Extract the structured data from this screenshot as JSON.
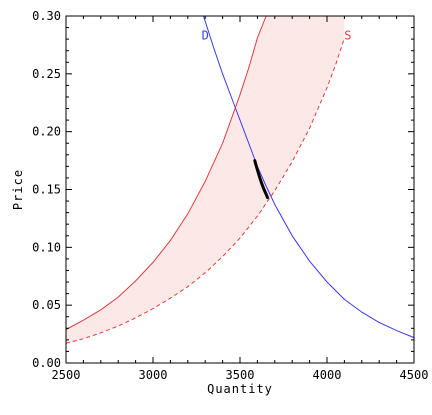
{
  "chart_data": {
    "type": "line",
    "title": "",
    "xlabel": "Quantity",
    "ylabel": "Price",
    "xlim": [
      2500,
      4500
    ],
    "ylim": [
      0.0,
      0.3
    ],
    "x_ticks": [
      2500,
      3000,
      3500,
      4000,
      4500
    ],
    "y_ticks": [
      0.0,
      0.05,
      0.1,
      0.15,
      0.2,
      0.25,
      0.3
    ],
    "x_tick_labels": [
      "2500",
      "3000",
      "3500",
      "4000",
      "4500"
    ],
    "y_tick_labels": [
      "0.00",
      "0.05",
      "0.10",
      "0.15",
      "0.20",
      "0.25",
      "0.30"
    ],
    "grid": false,
    "band": {
      "description": "shaded region between the upper and lower supply curves",
      "color": "#fde8e8"
    },
    "series": [
      {
        "name": "D",
        "color": "#3a3af0",
        "style": "solid",
        "label_at": [
          3300,
          0.283
        ],
        "x": [
          3290,
          3350,
          3400,
          3450,
          3500,
          3550,
          3600,
          3650,
          3700,
          3800,
          3900,
          4000,
          4100,
          4200,
          4300,
          4400,
          4500
        ],
        "y": [
          0.3,
          0.272,
          0.25,
          0.23,
          0.21,
          0.19,
          0.17,
          0.153,
          0.137,
          0.11,
          0.088,
          0.07,
          0.055,
          0.044,
          0.035,
          0.028,
          0.022
        ]
      },
      {
        "name": "S",
        "color": "#e23b3b",
        "style": "solid",
        "x": [
          2500,
          2600,
          2700,
          2800,
          2900,
          3000,
          3100,
          3200,
          3300,
          3400,
          3500,
          3550,
          3600,
          3650
        ],
        "y": [
          0.029,
          0.037,
          0.046,
          0.057,
          0.071,
          0.087,
          0.106,
          0.129,
          0.157,
          0.19,
          0.232,
          0.255,
          0.281,
          0.3
        ]
      },
      {
        "name": "S",
        "color": "#e23b3b",
        "style": "dashed",
        "label_at": [
          4120,
          0.283
        ],
        "x": [
          2500,
          2600,
          2700,
          2800,
          2900,
          3000,
          3100,
          3200,
          3300,
          3400,
          3500,
          3600,
          3700,
          3800,
          3900,
          4000,
          4050,
          4100
        ],
        "y": [
          0.017,
          0.021,
          0.026,
          0.032,
          0.039,
          0.047,
          0.056,
          0.066,
          0.078,
          0.092,
          0.108,
          0.127,
          0.149,
          0.174,
          0.203,
          0.238,
          0.258,
          0.281
        ]
      }
    ],
    "equilibrium_path": {
      "color": "#000000",
      "x": [
        3585,
        3590,
        3600,
        3612,
        3625,
        3638,
        3650,
        3658
      ],
      "y": [
        0.175,
        0.172,
        0.167,
        0.161,
        0.155,
        0.15,
        0.146,
        0.143
      ]
    }
  }
}
